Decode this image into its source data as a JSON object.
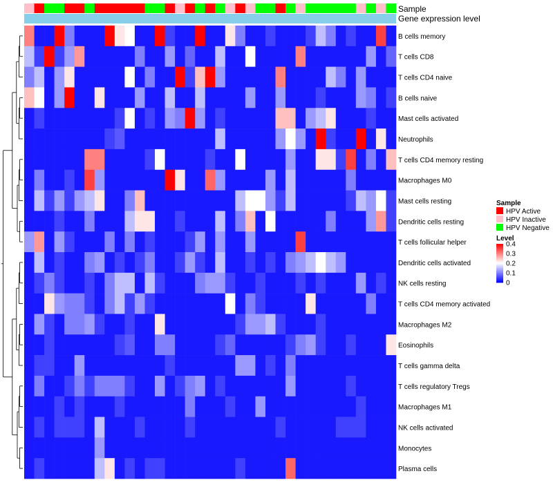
{
  "chart_data": {
    "type": "heatmap",
    "annotation_labels": [
      "Sample",
      "Gene expression level"
    ],
    "legend_sample": {
      "title": "Sample",
      "entries": [
        {
          "label": "HPV Active",
          "color": "#ff0000"
        },
        {
          "label": "HPV Inactive",
          "color": "#ffc0cb"
        },
        {
          "label": "HPV Negative",
          "color": "#00ff00"
        }
      ]
    },
    "legend_level": {
      "title": "Level",
      "ticks": [
        "0.4",
        "0.3",
        "0.2",
        "0.1",
        "0"
      ],
      "range": [
        0,
        0.4
      ]
    },
    "color_scale": {
      "low": "#0000ff",
      "mid": "#ffffff",
      "high": "#ff0000",
      "midpoint": 0.2
    },
    "sample_groups": [
      "I",
      "A",
      "N",
      "N",
      "A",
      "A",
      "N",
      "A",
      "A",
      "A",
      "A",
      "A",
      "N",
      "N",
      "A",
      "I",
      "A",
      "N",
      "A",
      "N",
      "I",
      "A",
      "I",
      "N",
      "N",
      "A",
      "N",
      "I",
      "N",
      "N",
      "N",
      "N",
      "N",
      "I",
      "N",
      "I",
      "N"
    ],
    "rows": [
      "B cells memory",
      "T cells CD8",
      "T cells CD4 naive",
      "B cells naive",
      "Mast cells activated",
      "Neutrophils",
      "T cells CD4 memory resting",
      "Macrophages M0",
      "Mast cells resting",
      "Dendritic cells resting",
      "T cells follicular helper",
      "Dendritic cells activated",
      "NK cells resting",
      "T cells CD4 memory activated",
      "Macrophages M2",
      "Eosinophils",
      "T cells gamma delta",
      "T cells regulatory  Tregs",
      "Macrophages M1",
      "NK cells activated",
      "Monocytes",
      "Plasma cells"
    ],
    "values": [
      [
        0.3,
        0.02,
        0.02,
        0.4,
        0.1,
        0.02,
        0.02,
        0.02,
        0.4,
        0.22,
        0.2,
        0.02,
        0.02,
        0.4,
        0.05,
        0.02,
        0.02,
        0.4,
        0.02,
        0.02,
        0.22,
        0.1,
        0.02,
        0.02,
        0.05,
        0.02,
        0.02,
        0.02,
        0.05,
        0.15,
        0.1,
        0.02,
        0.05,
        0.02,
        0.02,
        0.35,
        0.02
      ],
      [
        0.15,
        0.05,
        0.4,
        0.05,
        0.12,
        0.28,
        0.02,
        0.02,
        0.02,
        0.02,
        0.02,
        0.1,
        0.02,
        0.02,
        0.12,
        0.02,
        0.08,
        0.02,
        0.02,
        0.15,
        0.02,
        0.02,
        0.2,
        0.02,
        0.02,
        0.02,
        0.02,
        0.3,
        0.02,
        0.02,
        0.02,
        0.02,
        0.02,
        0.02,
        0.12,
        0.02,
        0.08
      ],
      [
        0.1,
        0.15,
        0.02,
        0.12,
        0.22,
        0.02,
        0.02,
        0.02,
        0.02,
        0.02,
        0.2,
        0.02,
        0.1,
        0.02,
        0.02,
        0.4,
        0.05,
        0.25,
        0.4,
        0.12,
        0.02,
        0.02,
        0.02,
        0.02,
        0.02,
        0.3,
        0.02,
        0.02,
        0.02,
        0.02,
        0.15,
        0.1,
        0.02,
        0.12,
        0.02,
        0.02,
        0.02
      ],
      [
        0.25,
        0.2,
        0.02,
        0.12,
        0.4,
        0.02,
        0.02,
        0.22,
        0.02,
        0.02,
        0.02,
        0.12,
        0.02,
        0.02,
        0.15,
        0.02,
        0.02,
        0.15,
        0.02,
        0.02,
        0.02,
        0.02,
        0.12,
        0.02,
        0.02,
        0.12,
        0.02,
        0.02,
        0.02,
        0.05,
        0.02,
        0.02,
        0.02,
        0.12,
        0.1,
        0.02,
        0.05
      ],
      [
        0.02,
        0.05,
        0.02,
        0.02,
        0.02,
        0.02,
        0.02,
        0.02,
        0.02,
        0.05,
        0.2,
        0.02,
        0.05,
        0.02,
        0.12,
        0.1,
        0.4,
        0.12,
        0.02,
        0.05,
        0.02,
        0.02,
        0.02,
        0.02,
        0.02,
        0.25,
        0.25,
        0.02,
        0.12,
        0.15,
        0.22,
        0.02,
        0.02,
        0.02,
        0.05,
        0.02,
        0.02
      ],
      [
        0.02,
        0.02,
        0.02,
        0.02,
        0.02,
        0.02,
        0.02,
        0.02,
        0.05,
        0.07,
        0.02,
        0.02,
        0.02,
        0.02,
        0.02,
        0.02,
        0.02,
        0.02,
        0.02,
        0.15,
        0.02,
        0.02,
        0.02,
        0.02,
        0.02,
        0.12,
        0.2,
        0.12,
        0.02,
        0.4,
        0.05,
        0.02,
        0.02,
        0.4,
        0.02,
        0.22,
        0.02
      ],
      [
        0.02,
        0.02,
        0.02,
        0.02,
        0.02,
        0.02,
        0.3,
        0.3,
        0.02,
        0.02,
        0.02,
        0.02,
        0.05,
        0.2,
        0.02,
        0.02,
        0.02,
        0.02,
        0.05,
        0.02,
        0.02,
        0.2,
        0.02,
        0.02,
        0.02,
        0.02,
        0.12,
        0.02,
        0.02,
        0.22,
        0.22,
        0.05,
        0.35,
        0.02,
        0.1,
        0.02,
        0.25
      ],
      [
        0.02,
        0.1,
        0.02,
        0.02,
        0.05,
        0.02,
        0.35,
        0.12,
        0.02,
        0.02,
        0.02,
        0.02,
        0.02,
        0.02,
        0.4,
        0.22,
        0.02,
        0.02,
        0.32,
        0.12,
        0.02,
        0.02,
        0.02,
        0.02,
        0.12,
        0.02,
        0.15,
        0.02,
        0.02,
        0.02,
        0.02,
        0.02,
        0.1,
        0.02,
        0.02,
        0.02,
        0.02
      ],
      [
        0.02,
        0.15,
        0.05,
        0.12,
        0.05,
        0.12,
        0.15,
        0.22,
        0.02,
        0.02,
        0.1,
        0.25,
        0.02,
        0.02,
        0.02,
        0.02,
        0.02,
        0.02,
        0.02,
        0.02,
        0.02,
        0.15,
        0.2,
        0.2,
        0.12,
        0.05,
        0.15,
        0.02,
        0.02,
        0.02,
        0.02,
        0.02,
        0.05,
        0.15,
        0.12,
        0.2,
        0.05
      ],
      [
        0.02,
        0.02,
        0.02,
        0.05,
        0.02,
        0.02,
        0.1,
        0.02,
        0.02,
        0.02,
        0.15,
        0.22,
        0.22,
        0.02,
        0.02,
        0.05,
        0.02,
        0.02,
        0.02,
        0.15,
        0.02,
        0.1,
        0.25,
        0.02,
        0.2,
        0.02,
        0.02,
        0.02,
        0.02,
        0.02,
        0.1,
        0.02,
        0.02,
        0.02,
        0.12,
        0.28,
        0.05
      ],
      [
        0.12,
        0.28,
        0.02,
        0.12,
        0.05,
        0.02,
        0.02,
        0.02,
        0.1,
        0.02,
        0.1,
        0.02,
        0.05,
        0.02,
        0.02,
        0.02,
        0.05,
        0.12,
        0.02,
        0.12,
        0.02,
        0.02,
        0.12,
        0.02,
        0.02,
        0.02,
        0.02,
        0.35,
        0.02,
        0.02,
        0.02,
        0.02,
        0.02,
        0.02,
        0.02,
        0.02,
        0.02
      ],
      [
        0.02,
        0.15,
        0.02,
        0.05,
        0.02,
        0.02,
        0.1,
        0.12,
        0.02,
        0.05,
        0.02,
        0.05,
        0.1,
        0.02,
        0.02,
        0.05,
        0.12,
        0.05,
        0.02,
        0.15,
        0.02,
        0.02,
        0.05,
        0.02,
        0.05,
        0.02,
        0.1,
        0.12,
        0.15,
        0.2,
        0.15,
        0.12,
        0.02,
        0.02,
        0.02,
        0.02,
        0.02
      ],
      [
        0.02,
        0.05,
        0.1,
        0.05,
        0.02,
        0.02,
        0.05,
        0.02,
        0.1,
        0.15,
        0.15,
        0.02,
        0.15,
        0.05,
        0.02,
        0.02,
        0.02,
        0.1,
        0.12,
        0.12,
        0.05,
        0.02,
        0.02,
        0.05,
        0.02,
        0.02,
        0.02,
        0.05,
        0.02,
        0.05,
        0.02,
        0.02,
        0.02,
        0.12,
        0.02,
        0.05,
        0.02
      ],
      [
        0.02,
        0.02,
        0.22,
        0.12,
        0.1,
        0.1,
        0.05,
        0.02,
        0.1,
        0.15,
        0.05,
        0.12,
        0.05,
        0.02,
        0.02,
        0.02,
        0.02,
        0.02,
        0.02,
        0.02,
        0.2,
        0.02,
        0.1,
        0.05,
        0.02,
        0.02,
        0.02,
        0.02,
        0.22,
        0.02,
        0.02,
        0.02,
        0.02,
        0.02,
        0.1,
        0.02,
        0.02
      ],
      [
        0.02,
        0.12,
        0.05,
        0.02,
        0.1,
        0.1,
        0.12,
        0.05,
        0.02,
        0.02,
        0.05,
        0.02,
        0.02,
        0.22,
        0.02,
        0.02,
        0.02,
        0.02,
        0.02,
        0.02,
        0.02,
        0.05,
        0.12,
        0.12,
        0.15,
        0.05,
        0.02,
        0.02,
        0.02,
        0.05,
        0.02,
        0.02,
        0.02,
        0.02,
        0.02,
        0.02,
        0.02
      ],
      [
        0.02,
        0.02,
        0.05,
        0.02,
        0.02,
        0.02,
        0.02,
        0.02,
        0.02,
        0.05,
        0.07,
        0.02,
        0.02,
        0.1,
        0.1,
        0.02,
        0.02,
        0.02,
        0.02,
        0.05,
        0.08,
        0.02,
        0.02,
        0.02,
        0.02,
        0.02,
        0.05,
        0.1,
        0.12,
        0.05,
        0.02,
        0.02,
        0.05,
        0.02,
        0.02,
        0.02,
        0.22
      ],
      [
        0.02,
        0.05,
        0.05,
        0.02,
        0.02,
        0.12,
        0.02,
        0.02,
        0.02,
        0.02,
        0.02,
        0.02,
        0.02,
        0.02,
        0.05,
        0.02,
        0.02,
        0.02,
        0.02,
        0.02,
        0.02,
        0.12,
        0.12,
        0.02,
        0.05,
        0.02,
        0.1,
        0.02,
        0.02,
        0.02,
        0.02,
        0.02,
        0.02,
        0.02,
        0.02,
        0.02,
        0.02
      ],
      [
        0.02,
        0.1,
        0.02,
        0.02,
        0.05,
        0.1,
        0.05,
        0.1,
        0.1,
        0.1,
        0.05,
        0.02,
        0.02,
        0.12,
        0.02,
        0.05,
        0.1,
        0.12,
        0.02,
        0.05,
        0.02,
        0.02,
        0.02,
        0.02,
        0.02,
        0.02,
        0.12,
        0.02,
        0.02,
        0.02,
        0.02,
        0.02,
        0.05,
        0.02,
        0.02,
        0.02,
        0.02
      ],
      [
        0.02,
        0.02,
        0.02,
        0.05,
        0.02,
        0.05,
        0.02,
        0.02,
        0.02,
        0.05,
        0.02,
        0.02,
        0.02,
        0.02,
        0.02,
        0.02,
        0.1,
        0.02,
        0.02,
        0.02,
        0.05,
        0.02,
        0.02,
        0.12,
        0.02,
        0.02,
        0.02,
        0.02,
        0.02,
        0.02,
        0.02,
        0.02,
        0.02,
        0.05,
        0.02,
        0.02,
        0.02
      ],
      [
        0.02,
        0.05,
        0.02,
        0.05,
        0.05,
        0.05,
        0.02,
        0.15,
        0.02,
        0.02,
        0.02,
        0.05,
        0.02,
        0.02,
        0.02,
        0.02,
        0.05,
        0.02,
        0.02,
        0.02,
        0.02,
        0.02,
        0.02,
        0.02,
        0.02,
        0.05,
        0.02,
        0.02,
        0.02,
        0.02,
        0.02,
        0.05,
        0.05,
        0.05,
        0.02,
        0.02,
        0.02
      ],
      [
        0.02,
        0.02,
        0.02,
        0.02,
        0.02,
        0.02,
        0.02,
        0.12,
        0.02,
        0.02,
        0.02,
        0.02,
        0.02,
        0.02,
        0.02,
        0.02,
        0.02,
        0.02,
        0.02,
        0.02,
        0.02,
        0.02,
        0.02,
        0.02,
        0.02,
        0.02,
        0.02,
        0.02,
        0.02,
        0.02,
        0.02,
        0.02,
        0.02,
        0.02,
        0.02,
        0.02,
        0.02
      ],
      [
        0.02,
        0.05,
        0.02,
        0.02,
        0.02,
        0.02,
        0.02,
        0.15,
        0.22,
        0.02,
        0.05,
        0.02,
        0.05,
        0.05,
        0.02,
        0.02,
        0.02,
        0.02,
        0.02,
        0.02,
        0.02,
        0.05,
        0.02,
        0.02,
        0.02,
        0.02,
        0.32,
        0.02,
        0.02,
        0.02,
        0.02,
        0.02,
        0.02,
        0.02,
        0.02,
        0.02,
        0.02
      ]
    ]
  }
}
